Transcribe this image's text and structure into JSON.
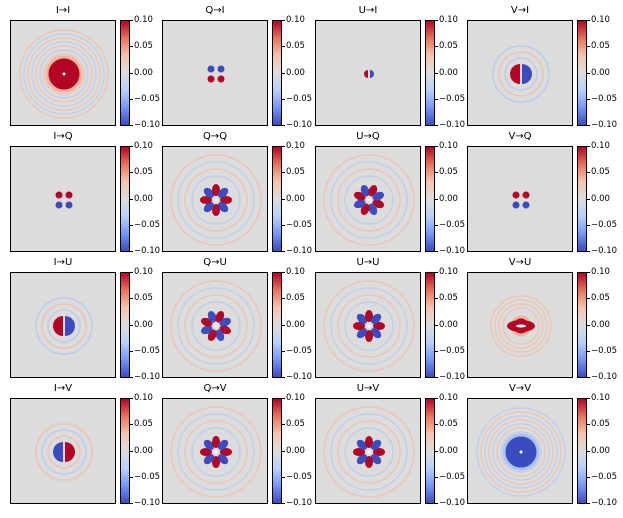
{
  "chart_data": {
    "type": "heatmap",
    "colormap": "coolwarm",
    "grid": false,
    "legend": "colorbar-right-of-each-panel",
    "colorbar_range": [
      -0.1,
      0.1
    ],
    "colorbar_ticks": [
      "0.10",
      "0.05",
      "0.00",
      "−0.05",
      "−0.10"
    ],
    "panels": [
      {
        "title": "I→I",
        "pattern": "rings",
        "polarity": 1
      },
      {
        "title": "Q→I",
        "pattern": "quad",
        "polarity": -1
      },
      {
        "title": "U→I",
        "pattern": "dipole",
        "polarity": 1
      },
      {
        "title": "V→I",
        "pattern": "dipole",
        "polarity": 1
      },
      {
        "title": "I→Q",
        "pattern": "quad",
        "polarity": 1
      },
      {
        "title": "Q→Q",
        "pattern": "clover",
        "polarity": 1
      },
      {
        "title": "U→Q",
        "pattern": "clover-rot",
        "polarity": 1
      },
      {
        "title": "V→Q",
        "pattern": "quad",
        "polarity": 1
      },
      {
        "title": "I→U",
        "pattern": "dipole",
        "polarity": 1
      },
      {
        "title": "Q→U",
        "pattern": "clover-rot",
        "polarity": 1
      },
      {
        "title": "U→U",
        "pattern": "clover",
        "polarity": 1
      },
      {
        "title": "V→U",
        "pattern": "rings",
        "polarity": 1
      },
      {
        "title": "I→V",
        "pattern": "dipole",
        "polarity": -1
      },
      {
        "title": "Q→V",
        "pattern": "clover",
        "polarity": 1
      },
      {
        "title": "U→V",
        "pattern": "clover",
        "polarity": 1
      },
      {
        "title": "V→V",
        "pattern": "rings",
        "polarity": -1
      }
    ],
    "colors": {
      "positive": "#b40426",
      "negative": "#3b4cc0",
      "positive_light": "#f4b49a",
      "negative_light": "#a9c2f5",
      "neutral": "#dcdcdc"
    }
  }
}
